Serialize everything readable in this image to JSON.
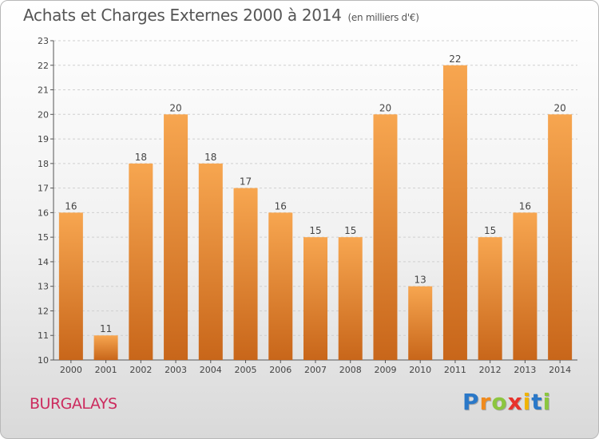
{
  "header": {
    "title": "Achats et Charges Externes 2000 à 2014",
    "subtitle": "(en milliers d'€)"
  },
  "footer": {
    "place": "BURGALAYS",
    "logo_letters": [
      "P",
      "r",
      "o",
      "x",
      "i",
      "t",
      "i"
    ],
    "logo_colors": [
      "#2a78c8",
      "#f08a1c",
      "#8cc63f",
      "#e8322b",
      "#f0b400",
      "#2a78c8",
      "#8cc63f"
    ]
  },
  "colors": {
    "bar_top": "#f7a650",
    "bar_bottom": "#c8661a",
    "grid": "#d0d0d0"
  },
  "chart_data": {
    "type": "bar",
    "title": "Achats et Charges Externes 2000 à 2014",
    "subtitle": "(en milliers d'€)",
    "xlabel": "",
    "ylabel": "",
    "categories": [
      "2000",
      "2001",
      "2002",
      "2003",
      "2004",
      "2005",
      "2006",
      "2007",
      "2008",
      "2009",
      "2010",
      "2011",
      "2012",
      "2013",
      "2014"
    ],
    "values": [
      16,
      11,
      18,
      20,
      18,
      17,
      16,
      15,
      15,
      20,
      13,
      22,
      15,
      16,
      20
    ],
    "ylim": [
      10,
      23
    ],
    "yticks": [
      10,
      11,
      12,
      13,
      14,
      15,
      16,
      17,
      18,
      19,
      20,
      21,
      22,
      23
    ],
    "grid": true,
    "data_labels": true
  }
}
